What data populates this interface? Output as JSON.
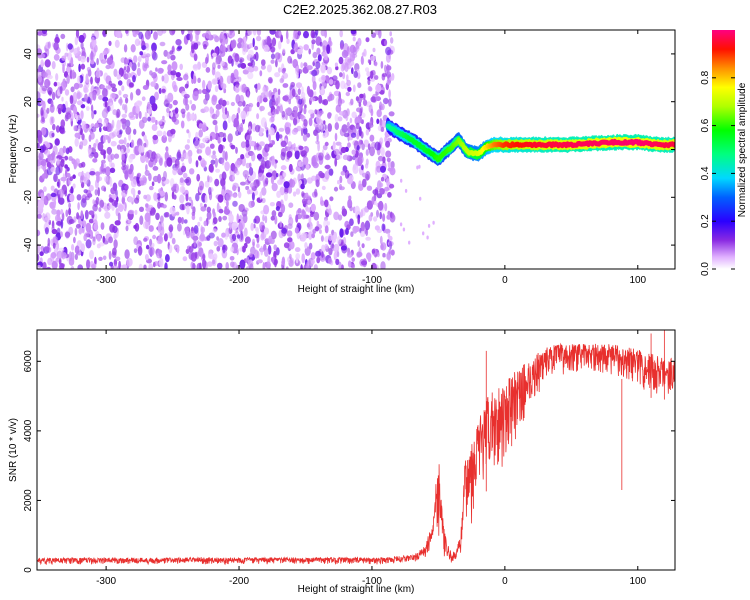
{
  "figure_title": "C2E2.2025.362.08.27.R03",
  "colors": {
    "background": "#ffffff",
    "snr_line": "#e8302e",
    "spectrogram_noise": "#8a2be2"
  },
  "chart_data": [
    {
      "type": "heatmap",
      "name": "spectrogram",
      "xlabel": "Height of straight line (km)",
      "ylabel": "Frequency (Hz)",
      "xlim": [
        -352,
        128
      ],
      "ylim": [
        -50,
        50
      ],
      "xticks": [
        -300,
        -200,
        -100,
        0,
        100
      ],
      "xtick_labels": [
        "-300",
        "-200",
        "-100",
        "0",
        "100"
      ],
      "yticks": [
        -40,
        -20,
        0,
        20,
        40
      ],
      "ytick_labels": [
        "-40",
        "-20",
        "0",
        "20",
        "40"
      ],
      "noise_region": {
        "x_start": -352,
        "x_end": -84,
        "typical_amplitude": 0.15
      },
      "ridge": {
        "description": "frequency trace of the signal",
        "x": [
          -88,
          -80,
          -70,
          -60,
          -50,
          -45,
          -40,
          -35,
          -28,
          -20,
          -14,
          -8,
          0,
          10,
          25,
          50,
          80,
          100,
          115,
          128
        ],
        "freq": [
          10,
          7,
          4,
          0,
          -4,
          -1,
          1,
          4,
          -1,
          -2,
          1,
          2,
          2,
          2,
          2,
          2,
          3,
          3,
          2,
          2
        ],
        "amplitude": [
          0.45,
          0.5,
          0.55,
          0.55,
          0.6,
          0.6,
          0.62,
          0.65,
          0.7,
          0.72,
          0.78,
          0.85,
          0.9,
          0.92,
          0.95,
          0.97,
          0.98,
          0.99,
          0.97,
          0.96
        ]
      },
      "colorbar": {
        "label": "Normalized spectral amplitude",
        "range": [
          0,
          1
        ],
        "ticks": [
          0.0,
          0.2,
          0.4,
          0.6,
          0.8
        ],
        "tick_labels": [
          "0.0",
          "0.2",
          "0.4",
          "0.6",
          "0.8"
        ]
      }
    },
    {
      "type": "line",
      "name": "snr",
      "xlabel": "Height of straight line (km)",
      "ylabel": "SNR (10 * v/v)",
      "xlim": [
        -352,
        128
      ],
      "ylim": [
        0,
        6900
      ],
      "xticks": [
        -300,
        -200,
        -100,
        0,
        100
      ],
      "xtick_labels": [
        "-300",
        "-200",
        "-100",
        "0",
        "100"
      ],
      "yticks": [
        0,
        2000,
        4000,
        6000
      ],
      "ytick_labels": [
        "0",
        "2000",
        "4000",
        "6000"
      ],
      "envelope": {
        "x": [
          -352,
          -200,
          -90,
          -68,
          -60,
          -55,
          -52,
          -49,
          -47,
          -44,
          -40,
          -36,
          -32,
          -30,
          -26,
          -22,
          -15,
          -10,
          0,
          10,
          20,
          30,
          40,
          60,
          80,
          95,
          105,
          115,
          120,
          128
        ],
        "base": [
          150,
          160,
          160,
          200,
          300,
          600,
          1000,
          800,
          450,
          250,
          150,
          200,
          450,
          1500,
          1100,
          1800,
          2200,
          2500,
          3000,
          3800,
          4600,
          5400,
          5600,
          5700,
          5600,
          5400,
          5100,
          4800,
          4900,
          5100
        ],
        "peak": [
          350,
          360,
          360,
          450,
          700,
          1300,
          2600,
          3400,
          1600,
          800,
          500,
          600,
          1600,
          3200,
          3700,
          4200,
          4800,
          5200,
          5400,
          5800,
          6100,
          6400,
          6500,
          6500,
          6500,
          6400,
          6300,
          6200,
          6100,
          6100
        ]
      },
      "spikes": [
        {
          "x": -14,
          "y": 6300
        },
        {
          "x": 110,
          "y": 6800
        },
        {
          "x": 88,
          "y": 2300
        },
        {
          "x": 120,
          "y": 6900
        }
      ]
    }
  ]
}
